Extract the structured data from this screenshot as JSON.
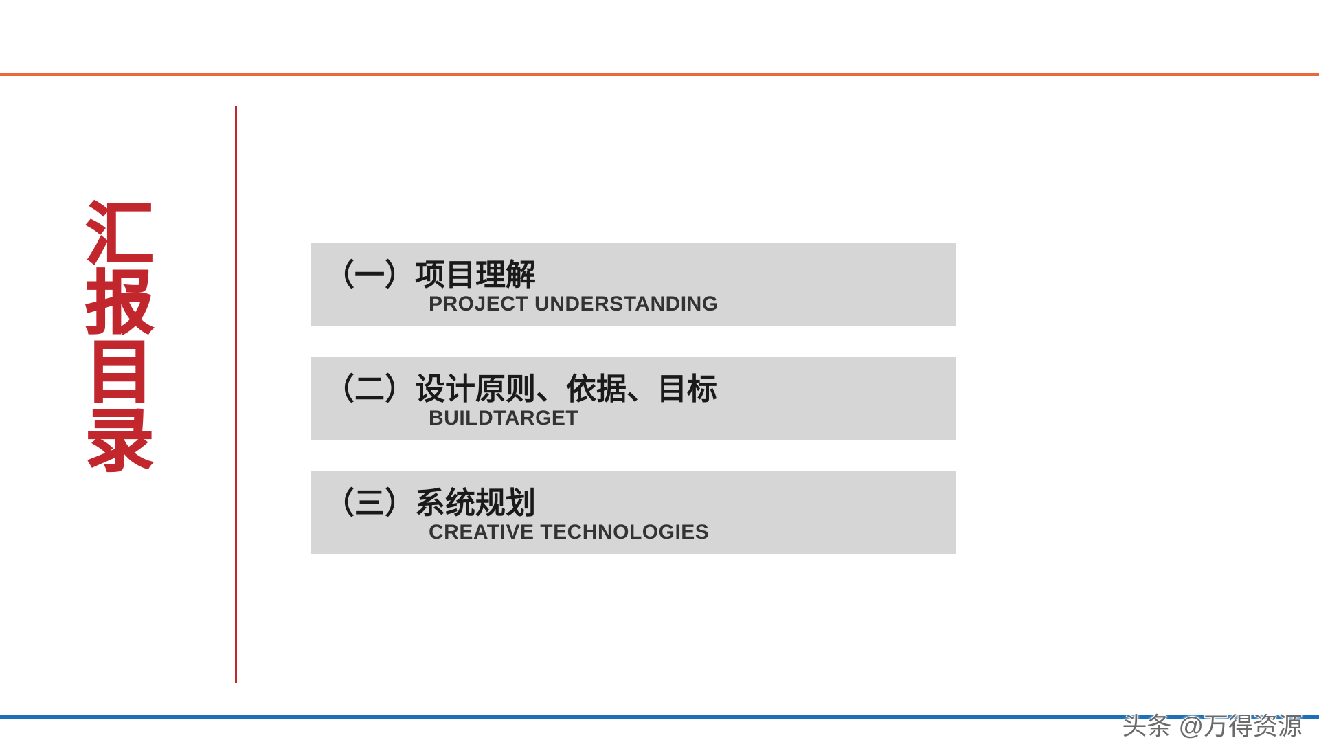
{
  "colors": {
    "top_border": "#e86a3a",
    "bottom_border": "#1d6fb8",
    "vline": "#c1272d",
    "title_fill": "#c1272d",
    "title_stroke": "#c1272d",
    "item_bg": "#d6d6d6",
    "item_zh": "#1a1a1a",
    "item_en": "#333333",
    "watermark": "#6a6a6a"
  },
  "title": {
    "c1": "汇",
    "c2": "报",
    "c3": "目",
    "c4": "录"
  },
  "items": [
    {
      "zh": "（一）项目理解",
      "en": "PROJECT UNDERSTANDING"
    },
    {
      "zh": "（二）设计原则、依据、目标",
      "en": "BUILDTARGET"
    },
    {
      "zh": "（三）系统规划",
      "en": "CREATIVE TECHNOLOGIES"
    }
  ],
  "watermark": "头条 @万得资源"
}
